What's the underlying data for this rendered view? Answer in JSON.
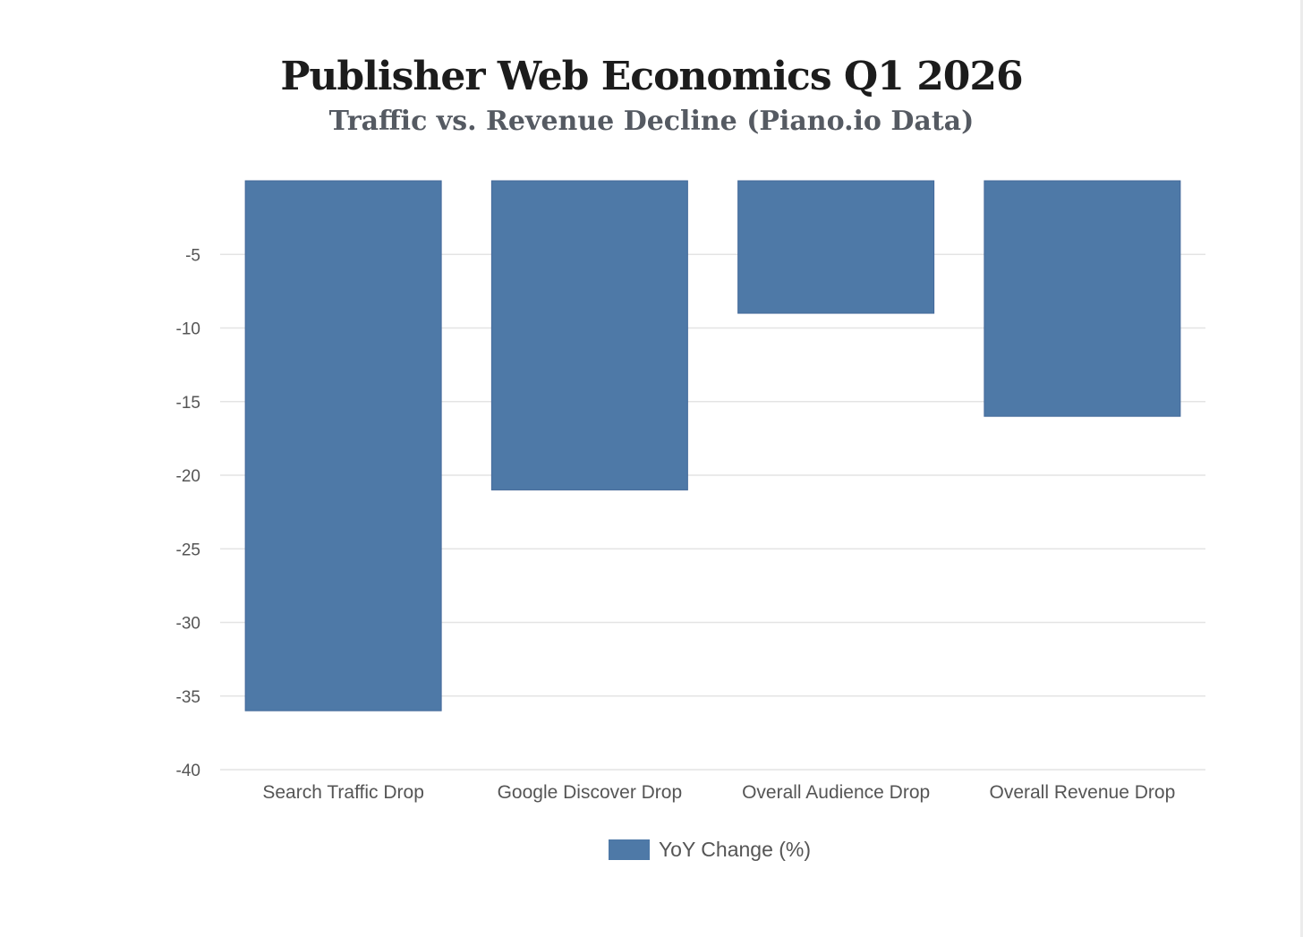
{
  "chart_data": {
    "type": "bar",
    "title": "Publisher Web Economics Q1 2026",
    "subtitle": "Traffic vs. Revenue Decline (Piano.io Data)",
    "categories": [
      "Search Traffic Drop",
      "Google Discover Drop",
      "Overall Audience Drop",
      "Overall Revenue Drop"
    ],
    "series": [
      {
        "name": "YoY Change (%)",
        "values": [
          -36,
          -21,
          -9,
          -16
        ],
        "color": "#4e79a7"
      }
    ],
    "ylim": [
      -40,
      0
    ],
    "yticks": [
      "-5",
      "-10",
      "-15",
      "-20",
      "-25",
      "-30",
      "-35",
      "-40"
    ],
    "grid": true,
    "legend": "bottom-center"
  }
}
